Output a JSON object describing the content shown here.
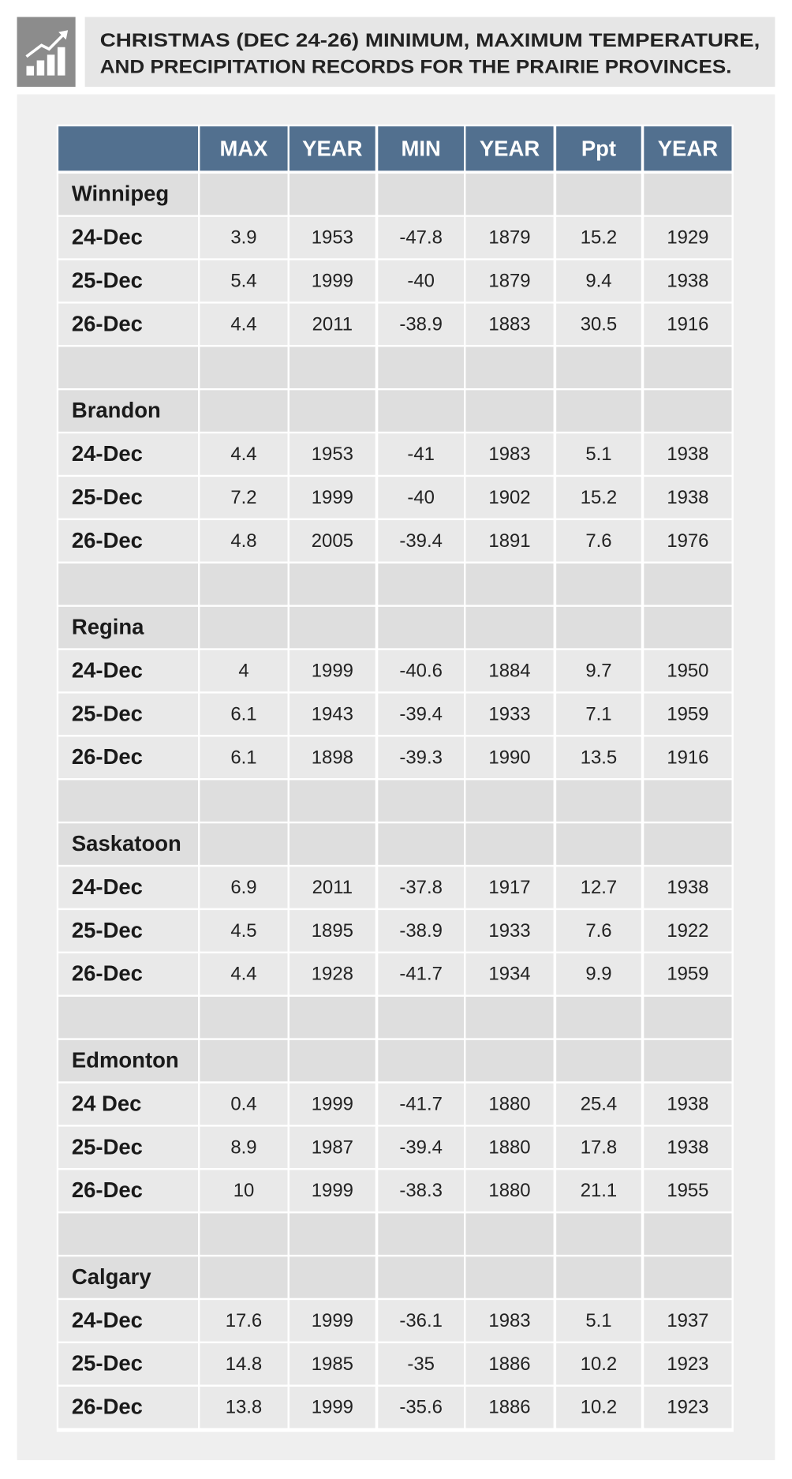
{
  "header": {
    "title": [
      "CHRISTMAS (DEC 24-26) MINIMUM, MAXIMUM TEMPERATURE,",
      "AND PRECIPITATION RECORDS FOR THE PRAIRIE PROVINCES."
    ]
  },
  "table": {
    "columns": [
      "MAX",
      "YEAR",
      "MIN",
      "YEAR",
      "Ppt",
      "YEAR"
    ],
    "cities": [
      {
        "name": "Winnipeg",
        "rows": [
          {
            "label": "24-Dec",
            "values": [
              3.9,
              1953,
              -47.8,
              1879,
              15.2,
              1929
            ]
          },
          {
            "label": "25-Dec",
            "values": [
              5.4,
              1999,
              -40,
              1879,
              9.4,
              1938
            ]
          },
          {
            "label": "26-Dec",
            "values": [
              4.4,
              2011,
              -38.9,
              1883,
              30.5,
              1916
            ]
          }
        ]
      },
      {
        "name": "Brandon",
        "rows": [
          {
            "label": "24-Dec",
            "values": [
              4.4,
              1953,
              -41,
              1983,
              5.1,
              1938
            ]
          },
          {
            "label": "25-Dec",
            "values": [
              7.2,
              1999,
              -40,
              1902,
              15.2,
              1938
            ]
          },
          {
            "label": "26-Dec",
            "values": [
              4.8,
              2005,
              -39.4,
              1891,
              7.6,
              1976
            ]
          }
        ]
      },
      {
        "name": "Regina",
        "rows": [
          {
            "label": "24-Dec",
            "values": [
              4,
              1999,
              -40.6,
              1884,
              9.7,
              1950
            ]
          },
          {
            "label": "25-Dec",
            "values": [
              6.1,
              1943,
              -39.4,
              1933,
              7.1,
              1959
            ]
          },
          {
            "label": "26-Dec",
            "values": [
              6.1,
              1898,
              -39.3,
              1990,
              13.5,
              1916
            ]
          }
        ]
      },
      {
        "name": "Saskatoon",
        "rows": [
          {
            "label": "24-Dec",
            "values": [
              6.9,
              2011,
              -37.8,
              1917,
              12.7,
              1938
            ]
          },
          {
            "label": "25-Dec",
            "values": [
              4.5,
              1895,
              -38.9,
              1933,
              7.6,
              1922
            ]
          },
          {
            "label": "26-Dec",
            "values": [
              4.4,
              1928,
              -41.7,
              1934,
              9.9,
              1959
            ]
          }
        ]
      },
      {
        "name": "Edmonton",
        "rows": [
          {
            "label": "24 Dec",
            "values": [
              0.4,
              1999,
              -41.7,
              1880,
              25.4,
              1938
            ]
          },
          {
            "label": "25-Dec",
            "values": [
              8.9,
              1987,
              -39.4,
              1880,
              17.8,
              1938
            ]
          },
          {
            "label": "26-Dec",
            "values": [
              10,
              1999,
              -38.3,
              1880,
              21.1,
              1955
            ]
          }
        ]
      },
      {
        "name": "Calgary",
        "rows": [
          {
            "label": "24-Dec",
            "values": [
              17.6,
              1999,
              -36.1,
              1983,
              5.1,
              1937
            ]
          },
          {
            "label": "25-Dec",
            "values": [
              14.8,
              1985,
              -35,
              1886,
              10.2,
              1923
            ]
          },
          {
            "label": "26-Dec",
            "values": [
              13.8,
              1999,
              -35.6,
              1886,
              10.2,
              1923
            ]
          }
        ]
      }
    ]
  }
}
